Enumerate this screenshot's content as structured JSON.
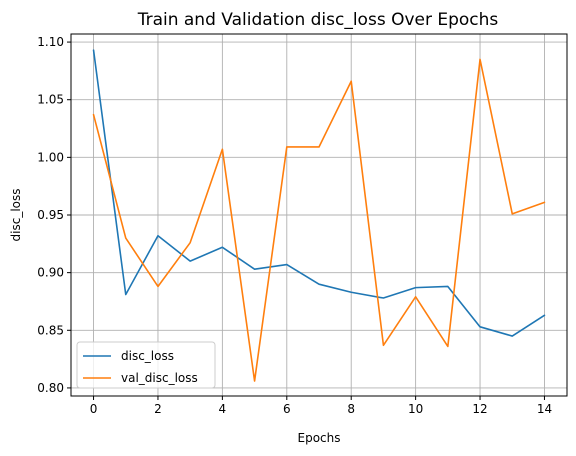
{
  "chart_data": {
    "type": "line",
    "title": "Train and Validation disc_loss Over Epochs",
    "xlabel": "Epochs",
    "ylabel": "disc_loss",
    "xlim": [
      -0.7,
      14.7
    ],
    "ylim": [
      0.793,
      1.107
    ],
    "xticks": [
      0,
      2,
      4,
      6,
      8,
      10,
      12,
      14
    ],
    "xtick_labels": [
      "0",
      "2",
      "4",
      "6",
      "8",
      "10",
      "12",
      "14"
    ],
    "yticks": [
      0.8,
      0.85,
      0.9,
      0.95,
      1.0,
      1.05,
      1.1
    ],
    "ytick_labels": [
      "0.80",
      "0.85",
      "0.90",
      "0.95",
      "1.00",
      "1.05",
      "1.10"
    ],
    "grid": true,
    "legend_position": "lower-left",
    "x": [
      0,
      1,
      2,
      3,
      4,
      5,
      6,
      7,
      8,
      9,
      10,
      11,
      12,
      13,
      14
    ],
    "series": [
      {
        "name": "disc_loss",
        "color": "#1f77b4",
        "values": [
          1.093,
          0.881,
          0.932,
          0.91,
          0.922,
          0.903,
          0.907,
          0.89,
          0.883,
          0.878,
          0.887,
          0.888,
          0.853,
          0.845,
          0.863
        ]
      },
      {
        "name": "val_disc_loss",
        "color": "#ff7f0e",
        "values": [
          1.037,
          0.93,
          0.888,
          0.926,
          1.007,
          0.806,
          1.009,
          1.009,
          1.066,
          0.837,
          0.879,
          0.836,
          1.085,
          0.951,
          0.961
        ]
      }
    ]
  }
}
